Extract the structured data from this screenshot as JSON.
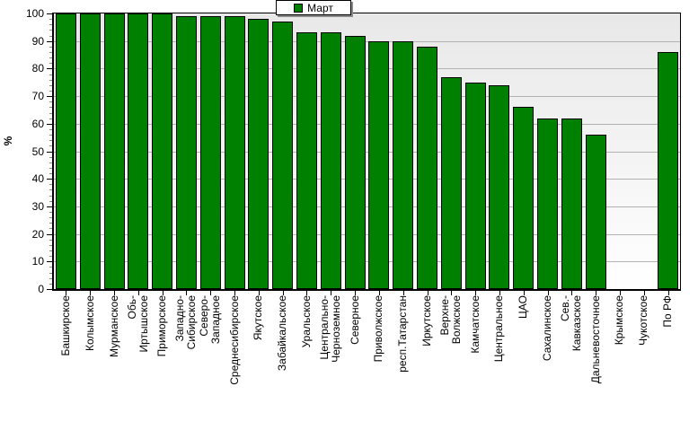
{
  "legend": {
    "label": "Март",
    "swatch_color": "#008000"
  },
  "y_axis": {
    "title": "%"
  },
  "chart_data": {
    "type": "bar",
    "title": "",
    "xlabel": "",
    "ylabel": "%",
    "ylim": [
      0,
      100
    ],
    "y_major_step": 10,
    "y_minor_step": 2,
    "y_tick_labels": [
      "0",
      "10",
      "20",
      "30",
      "40",
      "50",
      "60",
      "70",
      "80",
      "90",
      "100"
    ],
    "grid": true,
    "legend_position": "top-center",
    "plot_background": {
      "top": "#e8e8e8",
      "bottom": "#ffffff"
    },
    "bar_color": "#008000",
    "bar_border_color": "#000000",
    "gridline_color": "#b2b2b2",
    "categories": [
      "Башкирское",
      "Колымское",
      "Мурманское",
      "Обь-Иртышское",
      "Приморское",
      "Западно-Сибирское",
      "Северо-Западное",
      "Среднесибирское",
      "Якутское",
      "Забайкальское",
      "Уральское",
      "Центрально-Черноземное",
      "Северное",
      "Приволжское",
      "респ.Татарстан",
      "Иркутское",
      "Верхне-Волжское",
      "Камчатское",
      "Центральное",
      "ЦАО",
      "Сахалинское",
      "Сев.-Кавказское",
      "Дальневосточное",
      "Крымское",
      "Чукотское",
      "По РФ"
    ],
    "category_display_lines": [
      [
        "Башкирское"
      ],
      [
        "Колымское"
      ],
      [
        "Мурманское"
      ],
      [
        "Обь-",
        "Иртышское"
      ],
      [
        "Приморское"
      ],
      [
        "Западно-",
        "Сибирское"
      ],
      [
        "Северо-",
        "Западное"
      ],
      [
        "Среднесибирское"
      ],
      [
        "Якутское"
      ],
      [
        "Забайкальское"
      ],
      [
        "Уральское"
      ],
      [
        "Центрально-",
        "Черноземное"
      ],
      [
        "Северное"
      ],
      [
        "Приволжское"
      ],
      [
        "респ.Татарстан"
      ],
      [
        "Иркутское"
      ],
      [
        "Верхне-",
        "Волжское"
      ],
      [
        "Камчатское"
      ],
      [
        "Центральное"
      ],
      [
        "ЦАО"
      ],
      [
        "Сахалинское"
      ],
      [
        "Сев.-",
        "Кавказское"
      ],
      [
        "Дальневосточное"
      ],
      [
        "Крымское"
      ],
      [
        "Чукотское"
      ],
      [
        "По РФ"
      ]
    ],
    "series": [
      {
        "name": "Март",
        "values": [
          100,
          100,
          100,
          100,
          100,
          99,
          99,
          99,
          98,
          97,
          93,
          93,
          92,
          90,
          90,
          88,
          77,
          75,
          74,
          66,
          62,
          62,
          56,
          0,
          0,
          86
        ]
      }
    ]
  }
}
